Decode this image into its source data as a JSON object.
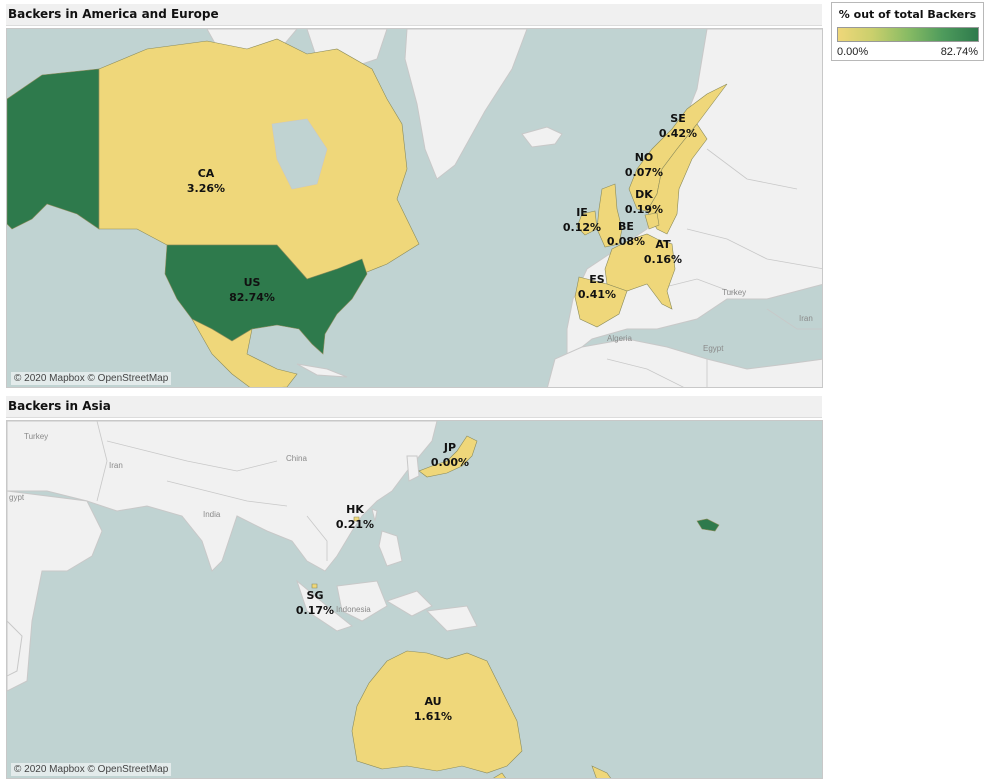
{
  "colors": {
    "water": "#c0d3d2",
    "land": "#f1f1f1",
    "land_alt": "#e9e9e9",
    "border": "#c8c8c8",
    "low": "#efd77a",
    "high": "#2e7a4c"
  },
  "legend": {
    "title": "% out of total Backers",
    "min_label": "0.00%",
    "max_label": "82.74%"
  },
  "map_america_europe": {
    "title": "Backers in America and Europe",
    "attribution": "© 2020 Mapbox © OpenStreetMap",
    "place_labels": [
      "Algeria",
      "Egypt",
      "Turkey",
      "Iran"
    ],
    "countries": [
      {
        "code": "CA",
        "pct": "3.26%",
        "value": 3.26,
        "color": "#efd77a"
      },
      {
        "code": "US",
        "pct": "82.74%",
        "value": 82.74,
        "color": "#2e7a4c"
      },
      {
        "code": "SE",
        "pct": "0.42%",
        "value": 0.42,
        "color": "#efd77a"
      },
      {
        "code": "NO",
        "pct": "0.07%",
        "value": 0.07,
        "color": "#efd77a"
      },
      {
        "code": "DK",
        "pct": "0.19%",
        "value": 0.19,
        "color": "#efd77a"
      },
      {
        "code": "IE",
        "pct": "0.12%",
        "value": 0.12,
        "color": "#efd77a"
      },
      {
        "code": "BE",
        "pct": "0.08%",
        "value": 0.08,
        "color": "#efd77a"
      },
      {
        "code": "AT",
        "pct": "0.16%",
        "value": 0.16,
        "color": "#efd77a"
      },
      {
        "code": "ES",
        "pct": "0.41%",
        "value": 0.41,
        "color": "#efd77a"
      }
    ]
  },
  "map_asia": {
    "title": "Backers in Asia",
    "attribution": "© 2020 Mapbox © OpenStreetMap",
    "place_labels": [
      "Turkey",
      "Iran",
      "China",
      "India",
      "Indonesia",
      "gypt"
    ],
    "countries": [
      {
        "code": "JP",
        "pct": "0.00%",
        "value": 0.0,
        "color": "#efd77a"
      },
      {
        "code": "HK",
        "pct": "0.21%",
        "value": 0.21,
        "color": "#efd77a"
      },
      {
        "code": "SG",
        "pct": "0.17%",
        "value": 0.17,
        "color": "#efd77a"
      },
      {
        "code": "AU",
        "pct": "1.61%",
        "value": 1.61,
        "color": "#efd77a"
      }
    ]
  }
}
